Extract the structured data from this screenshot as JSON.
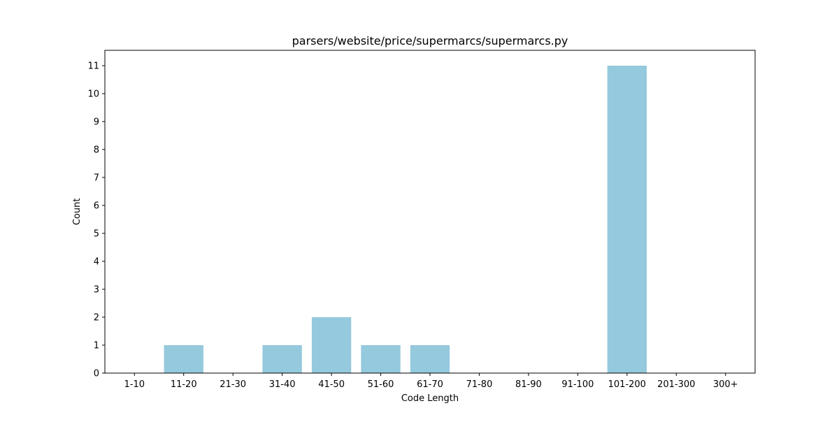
{
  "chart_data": {
    "type": "bar",
    "title": "parsers/website/price/supermarcs/supermarcs.py",
    "xlabel": "Code Length",
    "ylabel": "Count",
    "categories": [
      "1-10",
      "11-20",
      "21-30",
      "31-40",
      "41-50",
      "51-60",
      "61-70",
      "71-80",
      "81-90",
      "91-100",
      "101-200",
      "201-300",
      "300+"
    ],
    "values": [
      0,
      1,
      0,
      1,
      2,
      1,
      1,
      0,
      0,
      0,
      11,
      0,
      0
    ],
    "ylim": [
      0,
      11.55
    ],
    "yticks": [
      0,
      1,
      2,
      3,
      4,
      5,
      6,
      7,
      8,
      9,
      10,
      11
    ],
    "grid": false,
    "legend": "none",
    "bar_color": "#95c9dd",
    "axis_color": "#000000"
  }
}
